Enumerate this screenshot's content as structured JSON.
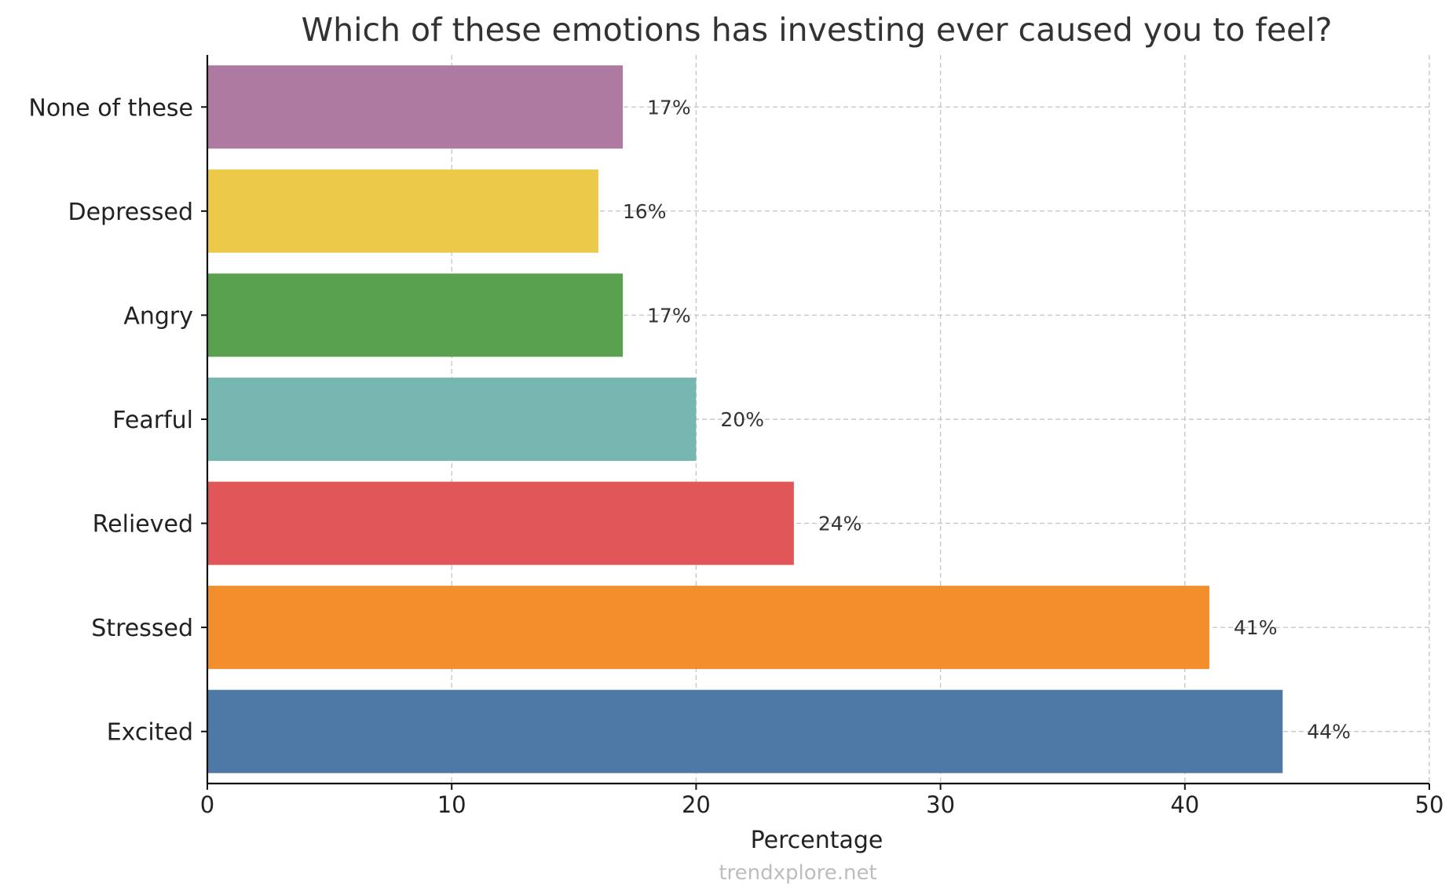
{
  "chart_data": {
    "type": "bar",
    "orientation": "horizontal",
    "title": "Which of these emotions has investing ever caused you to feel?",
    "xlabel": "Percentage",
    "ylabel": "",
    "categories": [
      "Excited",
      "Stressed",
      "Relieved",
      "Fearful",
      "Angry",
      "Depressed",
      "None of these"
    ],
    "values": [
      44,
      41,
      24,
      20,
      17,
      16,
      17
    ],
    "value_labels": [
      "44%",
      "41%",
      "24%",
      "20%",
      "17%",
      "16%",
      "17%"
    ],
    "colors": [
      "#4e79a7",
      "#f28e2b",
      "#e15759",
      "#76b7b2",
      "#59a14f",
      "#edc949",
      "#af7aa1"
    ],
    "xlim": [
      0,
      50
    ],
    "xticks": [
      0,
      10,
      20,
      30,
      40,
      50
    ],
    "grid": true
  },
  "watermark": "trendxplore.net"
}
